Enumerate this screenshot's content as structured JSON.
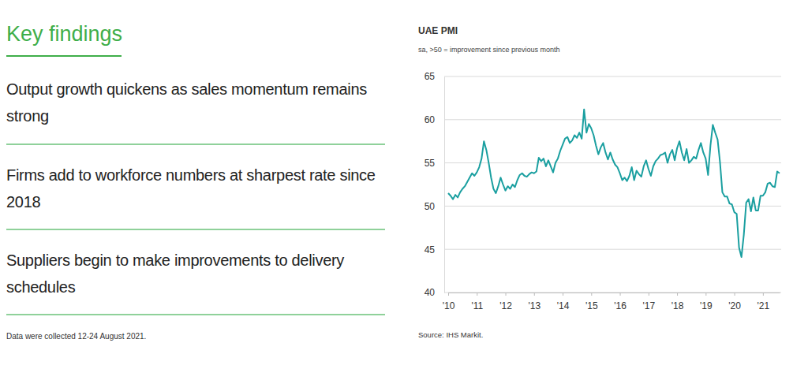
{
  "panel": {
    "heading": "Key findings",
    "findings": [
      "Output growth quickens as sales momentum remains strong",
      "Firms add to workforce numbers at sharpest rate since 2018",
      "Suppliers begin to make improvements to delivery schedules"
    ],
    "note": "Data were collected 12-24 August 2021."
  },
  "chart_data": {
    "type": "line",
    "title": "UAE PMI",
    "subtitle": "sa, >50 = improvement since previous month",
    "annotations": [
      "Source: IHS Markit."
    ],
    "categories": [
      "'10",
      null,
      null,
      null,
      null,
      null,
      null,
      null,
      null,
      null,
      null,
      null,
      "'11",
      null,
      null,
      null,
      null,
      null,
      null,
      null,
      null,
      null,
      null,
      null,
      "'12",
      null,
      null,
      null,
      null,
      null,
      null,
      null,
      null,
      null,
      null,
      null,
      "'13",
      null,
      null,
      null,
      null,
      null,
      null,
      null,
      null,
      null,
      null,
      null,
      "'14",
      null,
      null,
      null,
      null,
      null,
      null,
      null,
      null,
      null,
      null,
      null,
      "'15",
      null,
      null,
      null,
      null,
      null,
      null,
      null,
      null,
      null,
      null,
      null,
      "'16",
      null,
      null,
      null,
      null,
      null,
      null,
      null,
      null,
      null,
      null,
      null,
      "'17",
      null,
      null,
      null,
      null,
      null,
      null,
      null,
      null,
      null,
      null,
      null,
      "'18",
      null,
      null,
      null,
      null,
      null,
      null,
      null,
      null,
      null,
      null,
      null,
      "'19",
      null,
      null,
      null,
      null,
      null,
      null,
      null,
      null,
      null,
      null,
      null,
      "'20",
      null,
      null,
      null,
      null,
      null,
      null,
      null,
      null,
      null,
      null,
      null,
      "'21",
      null,
      null,
      null,
      null,
      null,
      null,
      null
    ],
    "values": [
      51.5,
      51.2,
      50.8,
      51.3,
      51.0,
      51.6,
      52.0,
      52.3,
      52.8,
      53.3,
      53.8,
      53.5,
      53.9,
      54.5,
      55.5,
      57.5,
      56.5,
      55.0,
      53.3,
      52.0,
      51.5,
      52.3,
      53.3,
      52.5,
      51.8,
      52.3,
      52.0,
      52.5,
      52.2,
      53.0,
      53.6,
      53.8,
      53.5,
      53.4,
      53.7,
      53.9,
      53.8,
      54.0,
      55.6,
      55.2,
      55.5,
      54.6,
      55.3,
      54.6,
      53.9,
      55.0,
      55.5,
      56.4,
      57.1,
      57.8,
      58.0,
      57.3,
      57.6,
      58.2,
      57.9,
      58.5,
      57.8,
      61.2,
      58.5,
      59.5,
      59.0,
      58.2,
      57.0,
      56.0,
      56.8,
      57.3,
      56.2,
      55.4,
      56.2,
      55.4,
      54.8,
      54.5,
      53.8,
      53.0,
      53.3,
      52.9,
      53.5,
      54.5,
      53.0,
      54.1,
      53.7,
      53.4,
      54.6,
      55.3,
      54.3,
      53.5,
      54.6,
      55.2,
      55.5,
      55.9,
      56.0,
      56.2,
      55.0,
      56.0,
      56.5,
      55.3,
      56.7,
      57.5,
      56.2,
      55.3,
      56.6,
      55.0,
      55.3,
      55.7,
      55.5,
      56.5,
      57.3,
      56.2,
      55.5,
      53.6,
      57.0,
      59.4,
      58.5,
      57.7,
      55.1,
      51.6,
      51.1,
      51.1,
      50.3,
      50.2,
      49.3,
      49.1,
      45.2,
      44.1,
      46.7,
      50.4,
      50.8,
      49.4,
      51.0,
      49.5,
      49.5,
      51.2,
      51.2,
      51.6,
      52.6,
      52.7,
      52.3,
      52.2,
      54.0,
      53.8
    ],
    "color": "#1a9fa0",
    "ylim": [
      40,
      65
    ],
    "yticks": [
      40,
      45,
      50,
      55,
      60,
      65
    ],
    "grid": true
  }
}
